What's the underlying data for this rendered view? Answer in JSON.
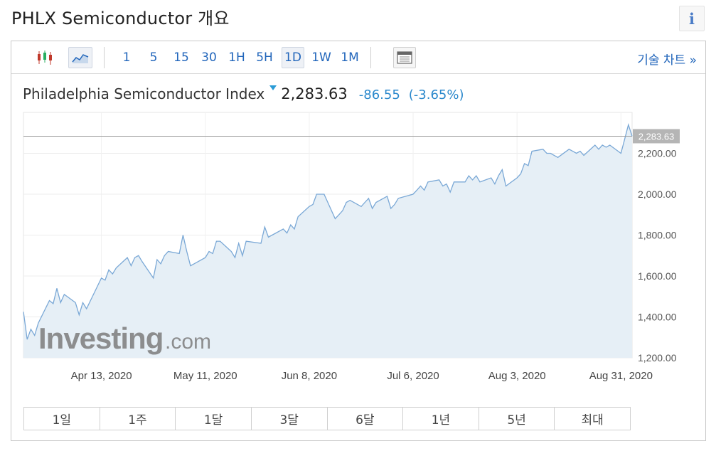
{
  "page": {
    "title": "PHLX Semiconductor 개요",
    "info_label": "i"
  },
  "toolbar": {
    "intervals": [
      "1",
      "5",
      "15",
      "30",
      "1H",
      "5H",
      "1D",
      "1W",
      "1M"
    ],
    "active_interval": "1D",
    "tech_chart_label": "기술 차트 »"
  },
  "quote": {
    "name": "Philadelphia Semiconductor Index",
    "price": "2,283.63",
    "change": "-86.55",
    "change_pct": "(-3.65%)",
    "direction": "down",
    "accent_color": "#2a88cc"
  },
  "ranges": [
    "1일",
    "1주",
    "1달",
    "3달",
    "6달",
    "1년",
    "5년",
    "최대"
  ],
  "watermark": {
    "brand": "Investing",
    "suffix": ".com"
  },
  "chart_data": {
    "type": "area",
    "title": "",
    "xlabel": "",
    "ylabel": "",
    "ylim": [
      1200,
      2400
    ],
    "y_ticks": [
      1200,
      1400,
      1600,
      1800,
      2000,
      2200
    ],
    "y_tick_labels": [
      "1,200.00",
      "1,400.00",
      "1,600.00",
      "1,800.00",
      "2,000.00",
      "2,200.00"
    ],
    "x_range": [
      "2020-03-23",
      "2020-09-03"
    ],
    "x_ticks": [
      "2020-04-13",
      "2020-05-11",
      "2020-06-08",
      "2020-07-06",
      "2020-08-03",
      "2020-08-31"
    ],
    "x_tick_labels": [
      "Apr 13, 2020",
      "May 11, 2020",
      "Jun 8, 2020",
      "Jul 6, 2020",
      "Aug 3, 2020",
      "Aug 31, 2020"
    ],
    "current_value": 2283.63,
    "current_label": "2,283.63",
    "grid": "horizontal",
    "line_color": "#7aa8d6",
    "fill_color": "#e6eff6",
    "series": [
      {
        "x": [
          "2020-03-23",
          "2020-03-24",
          "2020-03-25",
          "2020-03-26",
          "2020-03-27",
          "2020-03-30",
          "2020-03-31",
          "2020-04-01",
          "2020-04-02",
          "2020-04-03",
          "2020-04-06",
          "2020-04-07",
          "2020-04-08",
          "2020-04-09",
          "2020-04-13",
          "2020-04-14",
          "2020-04-15",
          "2020-04-16",
          "2020-04-17",
          "2020-04-20",
          "2020-04-21",
          "2020-04-22",
          "2020-04-23",
          "2020-04-24",
          "2020-04-27",
          "2020-04-28",
          "2020-04-29",
          "2020-04-30",
          "2020-05-01",
          "2020-05-04",
          "2020-05-05",
          "2020-05-06",
          "2020-05-07",
          "2020-05-08",
          "2020-05-11",
          "2020-05-12",
          "2020-05-13",
          "2020-05-14",
          "2020-05-15",
          "2020-05-18",
          "2020-05-19",
          "2020-05-20",
          "2020-05-21",
          "2020-05-22",
          "2020-05-26",
          "2020-05-27",
          "2020-05-28",
          "2020-05-29",
          "2020-06-01",
          "2020-06-02",
          "2020-06-03",
          "2020-06-04",
          "2020-06-05",
          "2020-06-08",
          "2020-06-09",
          "2020-06-10",
          "2020-06-11",
          "2020-06-12",
          "2020-06-15",
          "2020-06-16",
          "2020-06-17",
          "2020-06-18",
          "2020-06-19",
          "2020-06-22",
          "2020-06-23",
          "2020-06-24",
          "2020-06-25",
          "2020-06-26",
          "2020-06-29",
          "2020-06-30",
          "2020-07-01",
          "2020-07-02",
          "2020-07-06",
          "2020-07-07",
          "2020-07-08",
          "2020-07-09",
          "2020-07-10",
          "2020-07-13",
          "2020-07-14",
          "2020-07-15",
          "2020-07-16",
          "2020-07-17",
          "2020-07-20",
          "2020-07-21",
          "2020-07-22",
          "2020-07-23",
          "2020-07-24",
          "2020-07-27",
          "2020-07-28",
          "2020-07-29",
          "2020-07-30",
          "2020-07-31",
          "2020-08-03",
          "2020-08-04",
          "2020-08-05",
          "2020-08-06",
          "2020-08-07",
          "2020-08-10",
          "2020-08-11",
          "2020-08-12",
          "2020-08-13",
          "2020-08-14",
          "2020-08-17",
          "2020-08-18",
          "2020-08-19",
          "2020-08-20",
          "2020-08-21",
          "2020-08-24",
          "2020-08-25",
          "2020-08-26",
          "2020-08-27",
          "2020-08-28",
          "2020-08-31",
          "2020-09-01",
          "2020-09-02",
          "2020-09-03"
        ],
        "y": [
          1425,
          1290,
          1340,
          1310,
          1370,
          1480,
          1465,
          1540,
          1470,
          1510,
          1470,
          1410,
          1470,
          1440,
          1590,
          1580,
          1630,
          1610,
          1640,
          1690,
          1650,
          1690,
          1700,
          1670,
          1590,
          1680,
          1660,
          1700,
          1720,
          1710,
          1800,
          1720,
          1650,
          1660,
          1690,
          1720,
          1710,
          1770,
          1770,
          1720,
          1690,
          1760,
          1700,
          1770,
          1760,
          1840,
          1790,
          1800,
          1830,
          1810,
          1850,
          1830,
          1890,
          1940,
          1950,
          2000,
          2000,
          2000,
          1880,
          1900,
          1920,
          1960,
          1970,
          1940,
          1960,
          1980,
          1930,
          1960,
          1990,
          1930,
          1950,
          1980,
          2000,
          2020,
          2040,
          2020,
          2060,
          2070,
          2040,
          2050,
          2010,
          2060,
          2060,
          2090,
          2070,
          2090,
          2060,
          2080,
          2050,
          2090,
          2120,
          2040,
          2080,
          2100,
          2150,
          2140,
          2210,
          2220,
          2200,
          2200,
          2190,
          2180,
          2220,
          2210,
          2200,
          2210,
          2190,
          2240,
          2220,
          2240,
          2230,
          2240,
          2200,
          2270,
          2340,
          2283.63
        ]
      }
    ]
  }
}
